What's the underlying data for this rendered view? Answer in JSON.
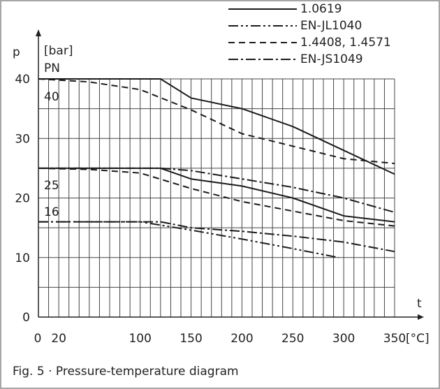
{
  "chart_data": {
    "type": "line",
    "xlabel": "t",
    "xunit": "[°C]",
    "ylabel": "p",
    "yunit": "[bar]",
    "xlim": [
      0,
      350
    ],
    "ylim": [
      0,
      40
    ],
    "x_ticks": [
      {
        "value": 0,
        "label": "0"
      },
      {
        "value": 20,
        "label": "20"
      },
      {
        "value": 100,
        "label": "100"
      },
      {
        "value": 150,
        "label": "150"
      },
      {
        "value": 200,
        "label": "200"
      },
      {
        "value": 250,
        "label": "250"
      },
      {
        "value": 300,
        "label": "300"
      },
      {
        "value": 350,
        "label": "350"
      }
    ],
    "y_ticks": [
      {
        "value": 0,
        "label": "0"
      },
      {
        "value": 10,
        "label": "10"
      },
      {
        "value": 20,
        "label": "20"
      },
      {
        "value": 30,
        "label": "30"
      },
      {
        "value": 40,
        "label": "40"
      }
    ],
    "grid": true,
    "legend_position": "top-right",
    "pn_title": "PN",
    "pn_labels": [
      {
        "value": 40,
        "label": "40"
      },
      {
        "value": 25,
        "label": "25"
      },
      {
        "value": 16,
        "label": "16"
      }
    ],
    "series": [
      {
        "name": "1.0619",
        "style": "solid",
        "pn": "40",
        "x": [
          0,
          120,
          150,
          200,
          250,
          300,
          350
        ],
        "y": [
          40,
          40,
          36.8,
          35,
          32,
          28,
          24
        ]
      },
      {
        "name": "1.4408, 1.4571",
        "style": "dashed",
        "pn": "40",
        "x": [
          0,
          50,
          100,
          150,
          200,
          250,
          300,
          350
        ],
        "y": [
          40,
          39.5,
          38.2,
          34.8,
          30.8,
          28.7,
          26.6,
          25.8
        ]
      },
      {
        "name": "1.0619",
        "style": "solid",
        "pn": "25",
        "x": [
          0,
          120,
          150,
          200,
          250,
          300,
          350
        ],
        "y": [
          25,
          25,
          23.2,
          22,
          20,
          17,
          16
        ]
      },
      {
        "name": "1.4408, 1.4571",
        "style": "dashed",
        "pn": "25",
        "x": [
          0,
          50,
          100,
          150,
          200,
          250,
          300,
          350
        ],
        "y": [
          25,
          24.8,
          24.2,
          21.6,
          19.4,
          17.8,
          16.2,
          15.3
        ]
      },
      {
        "name": "EN-JS1049",
        "style": "dash-dot",
        "pn": "25",
        "x": [
          0,
          120,
          150,
          200,
          250,
          300,
          350
        ],
        "y": [
          25,
          25,
          24.6,
          23.2,
          21.8,
          20,
          17.6
        ]
      },
      {
        "name": "EN-JS1049",
        "style": "dash-dot",
        "pn": "16",
        "x": [
          0,
          120,
          150,
          200,
          250,
          300,
          350
        ],
        "y": [
          16,
          16,
          15,
          14.4,
          13.6,
          12.6,
          11
        ]
      },
      {
        "name": "EN-JL1040",
        "style": "dash-dot-dot",
        "pn": "16",
        "x": [
          0,
          100,
          150,
          200,
          250,
          295
        ],
        "y": [
          16,
          16,
          14.6,
          13.1,
          11.5,
          10
        ]
      }
    ],
    "legend": [
      {
        "label": "1.0619",
        "style": "solid"
      },
      {
        "label": "EN-JL1040",
        "style": "dash-dot-dot"
      },
      {
        "label": "1.4408, 1.4571",
        "style": "dashed"
      },
      {
        "label": "EN-JS1049",
        "style": "dash-dot"
      }
    ]
  },
  "caption": "Fig. 5 · Pressure-temperature diagram"
}
